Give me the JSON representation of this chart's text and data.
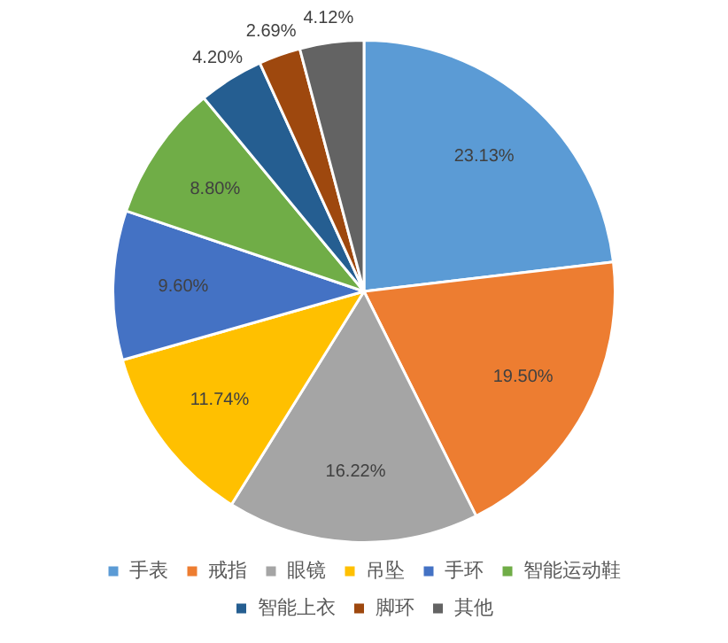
{
  "chart_data": {
    "type": "pie",
    "categories": [
      "手表",
      "戒指",
      "眼镜",
      "吊坠",
      "手环",
      "智能运动鞋",
      "智能上衣",
      "脚环",
      "其他"
    ],
    "values": [
      23.13,
      19.5,
      16.22,
      11.74,
      9.6,
      8.8,
      4.2,
      2.69,
      4.12
    ],
    "value_labels": [
      "23.13%",
      "19.50%",
      "16.22%",
      "11.74%",
      "9.60%",
      "8.80%",
      "4.20%",
      "2.69%",
      "4.12%"
    ],
    "colors": [
      "#5b9bd5",
      "#ed7d31",
      "#a5a5a5",
      "#ffc000",
      "#4472c4",
      "#70ad47",
      "#255e91",
      "#9e480e",
      "#636363"
    ],
    "legend": "bottom"
  }
}
